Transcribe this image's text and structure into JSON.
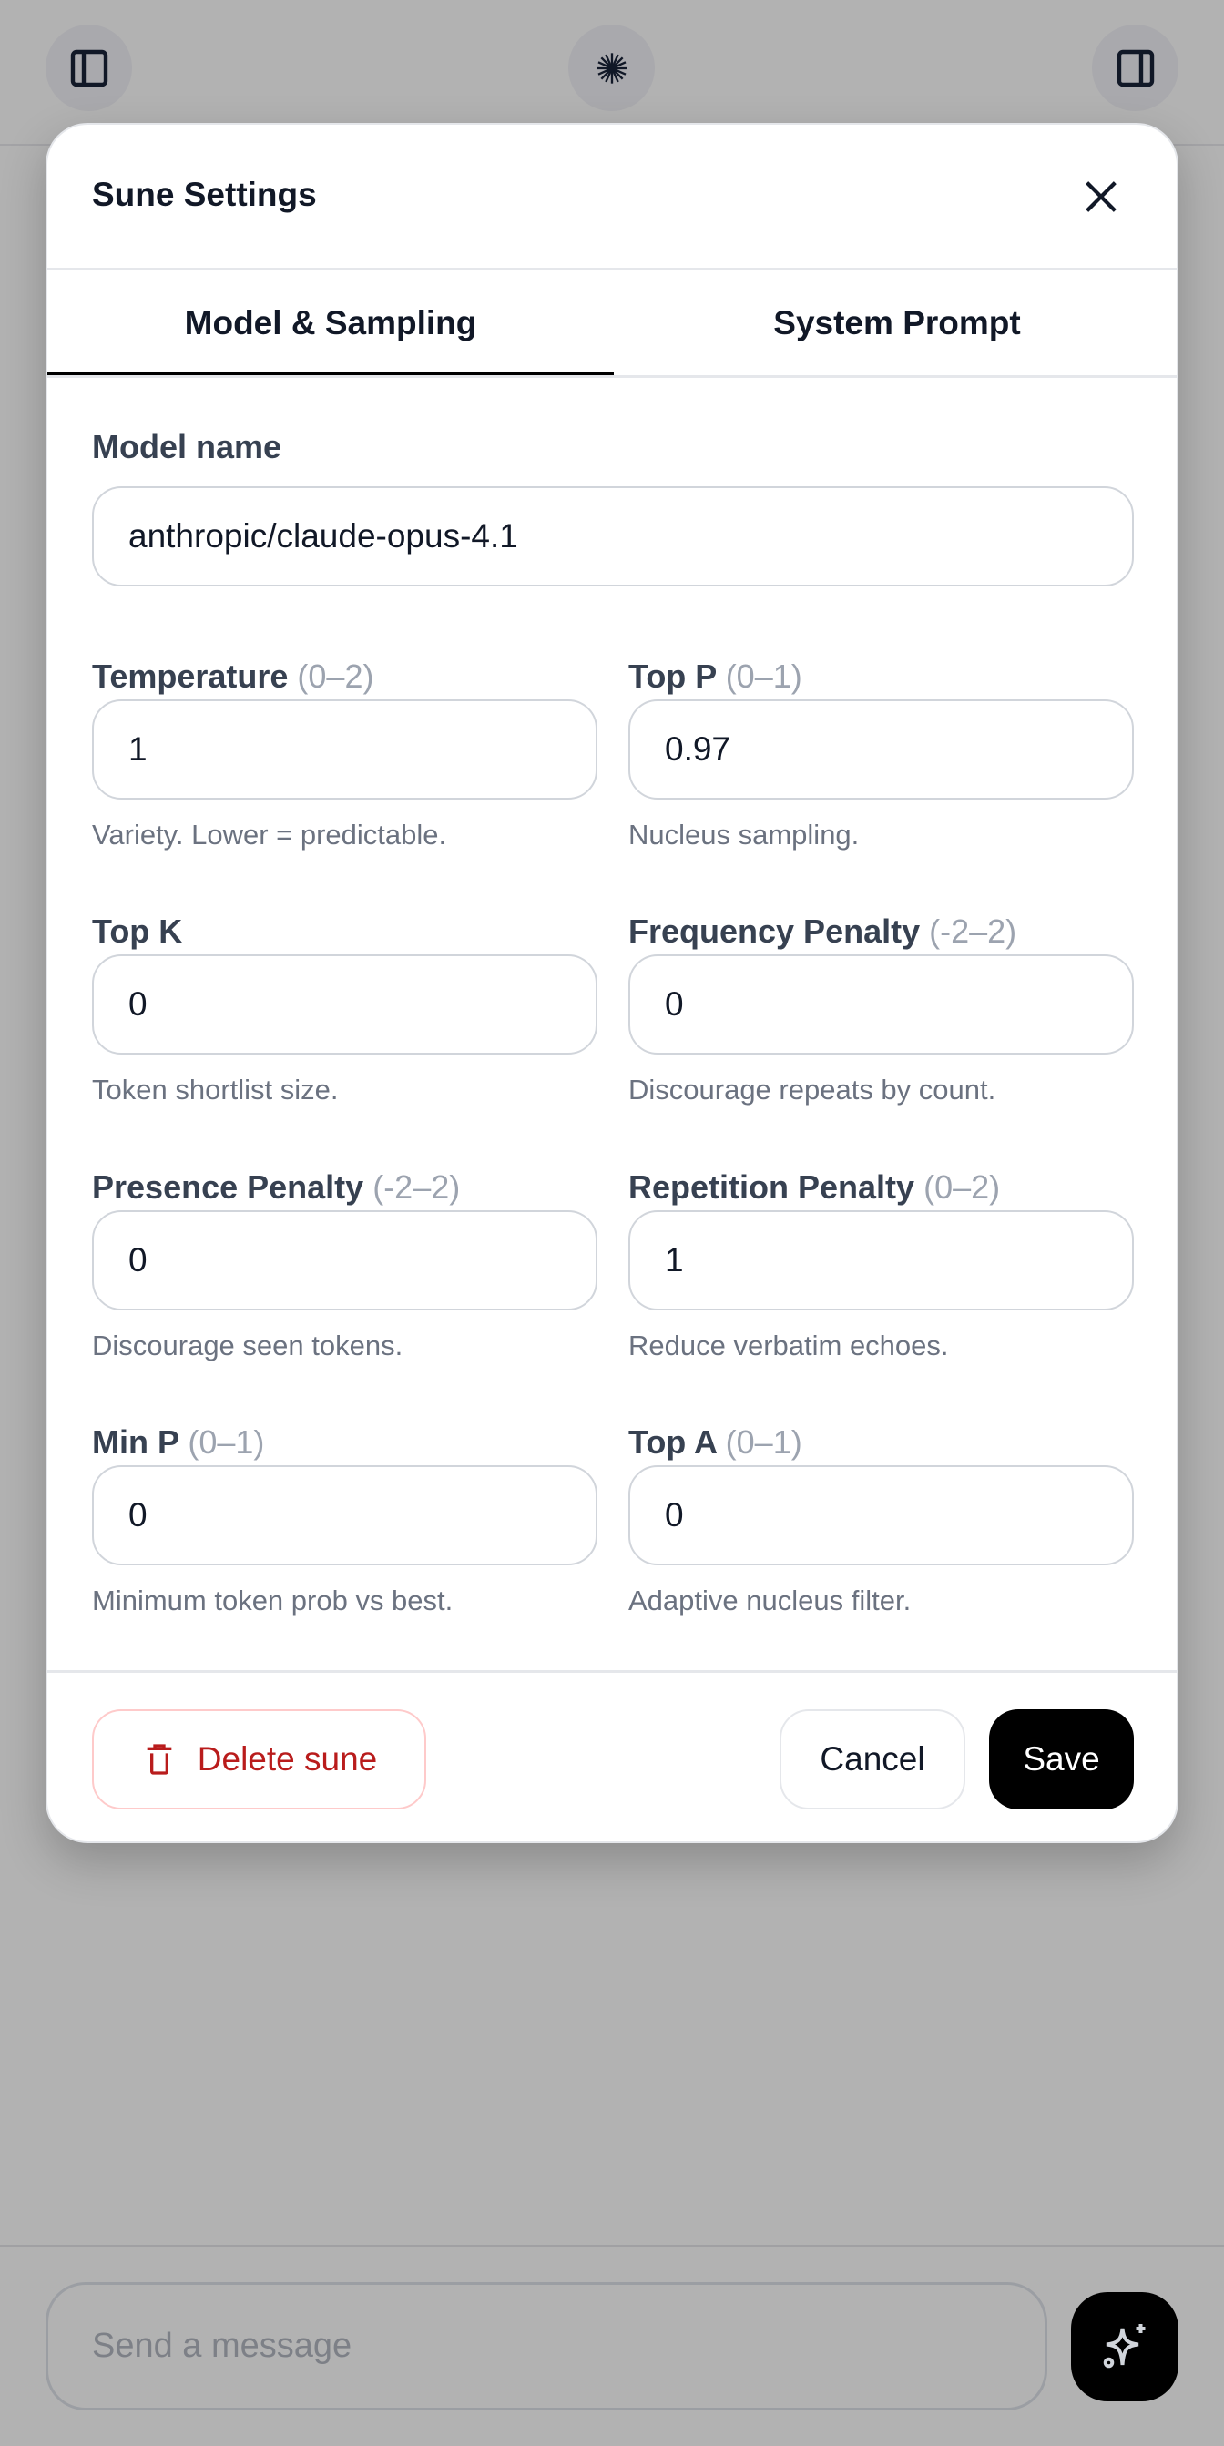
{
  "topbar": {
    "left_icon": "sidebar-left-icon",
    "center_icon": "starburst-logo-icon",
    "right_icon": "sidebar-right-icon"
  },
  "modal": {
    "title": "Sune Settings",
    "close_icon": "close-icon",
    "tabs": [
      {
        "label": "Model & Sampling",
        "active": true
      },
      {
        "label": "System Prompt",
        "active": false
      }
    ],
    "model_name": {
      "label": "Model name",
      "value": "anthropic/claude-opus-4.1"
    },
    "fields": [
      {
        "label": "Temperature",
        "range": "(0–2)",
        "value": "1",
        "hint": "Variety. Lower = predictable."
      },
      {
        "label": "Top P",
        "range": "(0–1)",
        "value": "0.97",
        "hint": "Nucleus sampling."
      },
      {
        "label": "Top K",
        "range": "",
        "value": "0",
        "hint": "Token shortlist size."
      },
      {
        "label": "Frequency Penalty",
        "range": "(-2–2)",
        "value": "0",
        "hint": "Discourage repeats by count."
      },
      {
        "label": "Presence Penalty",
        "range": "(-2–2)",
        "value": "0",
        "hint": "Discourage seen tokens."
      },
      {
        "label": "Repetition Penalty",
        "range": "(0–2)",
        "value": "1",
        "hint": "Reduce verbatim echoes."
      },
      {
        "label": "Min P",
        "range": "(0–1)",
        "value": "0",
        "hint": "Minimum token prob vs best."
      },
      {
        "label": "Top A",
        "range": "(0–1)",
        "value": "0",
        "hint": "Adaptive nucleus filter."
      }
    ],
    "footer": {
      "delete_label": "Delete sune",
      "delete_icon": "trash-icon",
      "cancel_label": "Cancel",
      "save_label": "Save"
    }
  },
  "composer": {
    "placeholder": "Send a message",
    "action_icon": "sparkles-icon"
  },
  "colors": {
    "danger": "#b91c1c",
    "primary": "#000000",
    "overlay": "#b2b2b2"
  }
}
